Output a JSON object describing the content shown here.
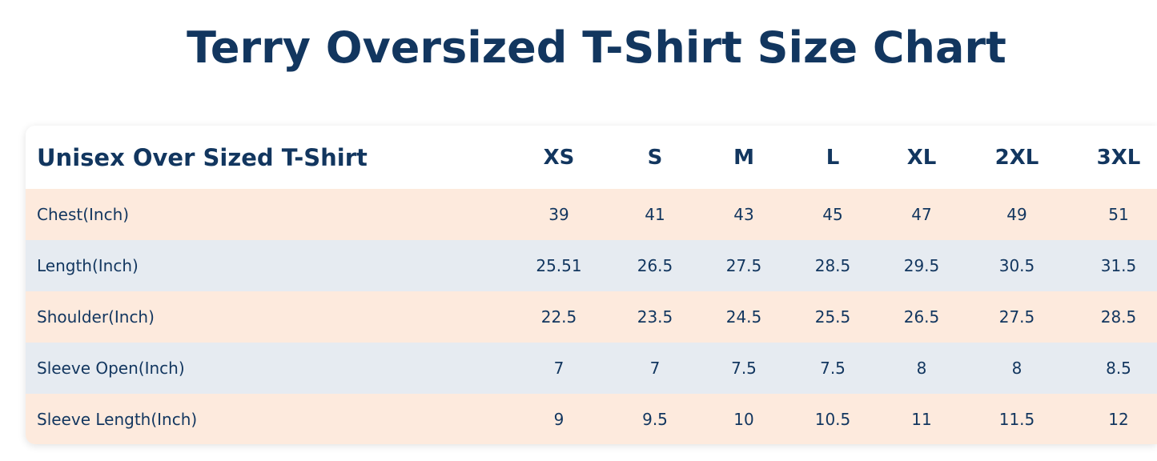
{
  "header": {
    "title": "Terry Oversized T-Shirt Size Chart"
  },
  "table": {
    "columns": [
      "Unisex Over Sized T-Shirt",
      "XS",
      "S",
      "M",
      "L",
      "XL",
      "2XL",
      "3XL"
    ],
    "rows": [
      [
        "Chest(Inch)",
        "39",
        "41",
        "43",
        "45",
        "47",
        "49",
        "51"
      ],
      [
        "Length(Inch)",
        "25.51",
        "26.5",
        "27.5",
        "28.5",
        "29.5",
        "30.5",
        "31.5"
      ],
      [
        "Shoulder(Inch)",
        "22.5",
        "23.5",
        "24.5",
        "25.5",
        "26.5",
        "27.5",
        "28.5"
      ],
      [
        "Sleeve Open(Inch)",
        "7",
        "7",
        "7.5",
        "7.5",
        "8",
        "8",
        "8.5"
      ],
      [
        "Sleeve Length(Inch)",
        "9",
        "9.5",
        "10",
        "10.5",
        "11",
        "11.5",
        "12"
      ]
    ]
  }
}
